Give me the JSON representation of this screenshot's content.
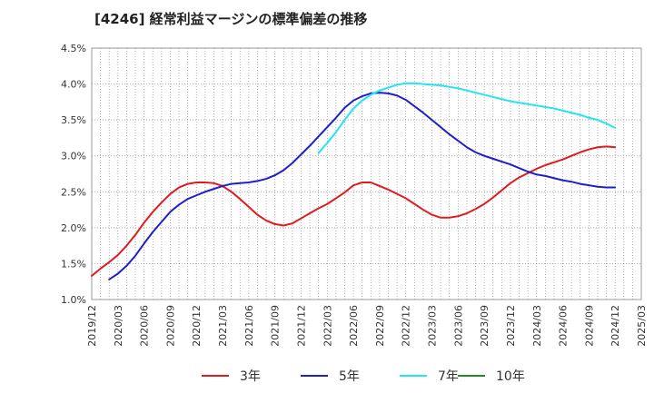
{
  "title": "[4246]  経常利益マージンの標準偏差の推移",
  "chart_data": {
    "type": "line",
    "ylim": [
      1.0,
      4.5
    ],
    "y_ticks": [
      "1.0%",
      "1.5%",
      "2.0%",
      "2.5%",
      "3.0%",
      "3.5%",
      "4.0%",
      "4.5%"
    ],
    "y_tick_values": [
      1.0,
      1.5,
      2.0,
      2.5,
      3.0,
      3.5,
      4.0,
      4.5
    ],
    "x_ticks": [
      "2019/12",
      "2020/03",
      "2020/06",
      "2020/09",
      "2020/12",
      "2021/03",
      "2021/06",
      "2021/09",
      "2021/12",
      "2022/03",
      "2022/06",
      "2022/09",
      "2022/12",
      "2023/03",
      "2023/06",
      "2023/09",
      "2023/12",
      "2024/03",
      "2024/06",
      "2024/09",
      "2024/12",
      "2025/03"
    ],
    "grid": true,
    "legend_position": "bottom",
    "series": [
      {
        "name": "3年",
        "color": "#e31a1c",
        "x": [
          "2019/12",
          "2020/01",
          "2020/02",
          "2020/03",
          "2020/04",
          "2020/05",
          "2020/06",
          "2020/07",
          "2020/08",
          "2020/09",
          "2020/10",
          "2020/11",
          "2020/12",
          "2021/01",
          "2021/02",
          "2021/03",
          "2021/04",
          "2021/05",
          "2021/06",
          "2021/07",
          "2021/08",
          "2021/09",
          "2021/10",
          "2021/11",
          "2021/12",
          "2022/01",
          "2022/02",
          "2022/03",
          "2022/04",
          "2022/05",
          "2022/06",
          "2022/07",
          "2022/08",
          "2022/09",
          "2022/10",
          "2022/11",
          "2022/12",
          "2023/01",
          "2023/02",
          "2023/03",
          "2023/04",
          "2023/05",
          "2023/06",
          "2023/07",
          "2023/08",
          "2023/09",
          "2023/10",
          "2023/11",
          "2023/12",
          "2024/01",
          "2024/02",
          "2024/03",
          "2024/04",
          "2024/05",
          "2024/06",
          "2024/07",
          "2024/08",
          "2024/09",
          "2024/10",
          "2024/11",
          "2024/12"
        ],
        "values": [
          1.33,
          1.43,
          1.52,
          1.62,
          1.75,
          1.9,
          2.07,
          2.22,
          2.35,
          2.47,
          2.56,
          2.61,
          2.63,
          2.63,
          2.62,
          2.58,
          2.5,
          2.4,
          2.29,
          2.18,
          2.1,
          2.05,
          2.03,
          2.06,
          2.13,
          2.2,
          2.27,
          2.33,
          2.41,
          2.49,
          2.59,
          2.63,
          2.63,
          2.58,
          2.53,
          2.47,
          2.41,
          2.33,
          2.25,
          2.18,
          2.14,
          2.14,
          2.16,
          2.2,
          2.26,
          2.33,
          2.42,
          2.52,
          2.62,
          2.7,
          2.76,
          2.82,
          2.87,
          2.91,
          2.95,
          3.0,
          3.05,
          3.09,
          3.12,
          3.13,
          3.12
        ]
      },
      {
        "name": "5年",
        "color": "#1f1fcc",
        "x": [
          "2020/02",
          "2020/03",
          "2020/04",
          "2020/05",
          "2020/06",
          "2020/07",
          "2020/08",
          "2020/09",
          "2020/10",
          "2020/11",
          "2020/12",
          "2021/01",
          "2021/02",
          "2021/03",
          "2021/04",
          "2021/05",
          "2021/06",
          "2021/07",
          "2021/08",
          "2021/09",
          "2021/10",
          "2021/11",
          "2021/12",
          "2022/01",
          "2022/02",
          "2022/03",
          "2022/04",
          "2022/05",
          "2022/06",
          "2022/07",
          "2022/08",
          "2022/09",
          "2022/10",
          "2022/11",
          "2022/12",
          "2023/01",
          "2023/02",
          "2023/03",
          "2023/04",
          "2023/05",
          "2023/06",
          "2023/07",
          "2023/08",
          "2023/09",
          "2023/10",
          "2023/11",
          "2023/12",
          "2024/01",
          "2024/02",
          "2024/03",
          "2024/04",
          "2024/05",
          "2024/06",
          "2024/07",
          "2024/08",
          "2024/09",
          "2024/10",
          "2024/11",
          "2024/12"
        ],
        "values": [
          1.28,
          1.36,
          1.47,
          1.61,
          1.78,
          1.94,
          2.08,
          2.22,
          2.32,
          2.4,
          2.45,
          2.5,
          2.54,
          2.58,
          2.61,
          2.62,
          2.63,
          2.65,
          2.68,
          2.73,
          2.8,
          2.9,
          3.02,
          3.14,
          3.27,
          3.4,
          3.53,
          3.67,
          3.77,
          3.83,
          3.87,
          3.88,
          3.87,
          3.84,
          3.78,
          3.69,
          3.6,
          3.5,
          3.4,
          3.3,
          3.21,
          3.12,
          3.05,
          3.0,
          2.96,
          2.92,
          2.88,
          2.83,
          2.78,
          2.74,
          2.72,
          2.69,
          2.66,
          2.64,
          2.61,
          2.59,
          2.57,
          2.56,
          2.56
        ]
      },
      {
        "name": "7年",
        "color": "#22e5f0",
        "x": [
          "2022/02",
          "2022/03",
          "2022/04",
          "2022/05",
          "2022/06",
          "2022/07",
          "2022/08",
          "2022/09",
          "2022/10",
          "2022/11",
          "2022/12",
          "2023/01",
          "2023/02",
          "2023/03",
          "2023/04",
          "2023/05",
          "2023/06",
          "2023/07",
          "2023/08",
          "2023/09",
          "2023/10",
          "2023/11",
          "2023/12",
          "2024/01",
          "2024/02",
          "2024/03",
          "2024/04",
          "2024/05",
          "2024/06",
          "2024/07",
          "2024/08",
          "2024/09",
          "2024/10",
          "2024/11",
          "2024/12"
        ],
        "values": [
          3.04,
          3.18,
          3.33,
          3.5,
          3.66,
          3.77,
          3.85,
          3.91,
          3.95,
          3.99,
          4.01,
          4.01,
          4.0,
          3.99,
          3.98,
          3.96,
          3.94,
          3.91,
          3.88,
          3.85,
          3.82,
          3.79,
          3.76,
          3.74,
          3.72,
          3.7,
          3.68,
          3.66,
          3.63,
          3.6,
          3.57,
          3.53,
          3.5,
          3.45,
          3.39
        ]
      },
      {
        "name": "10年",
        "color": "#228b22",
        "x": [],
        "values": []
      }
    ]
  }
}
